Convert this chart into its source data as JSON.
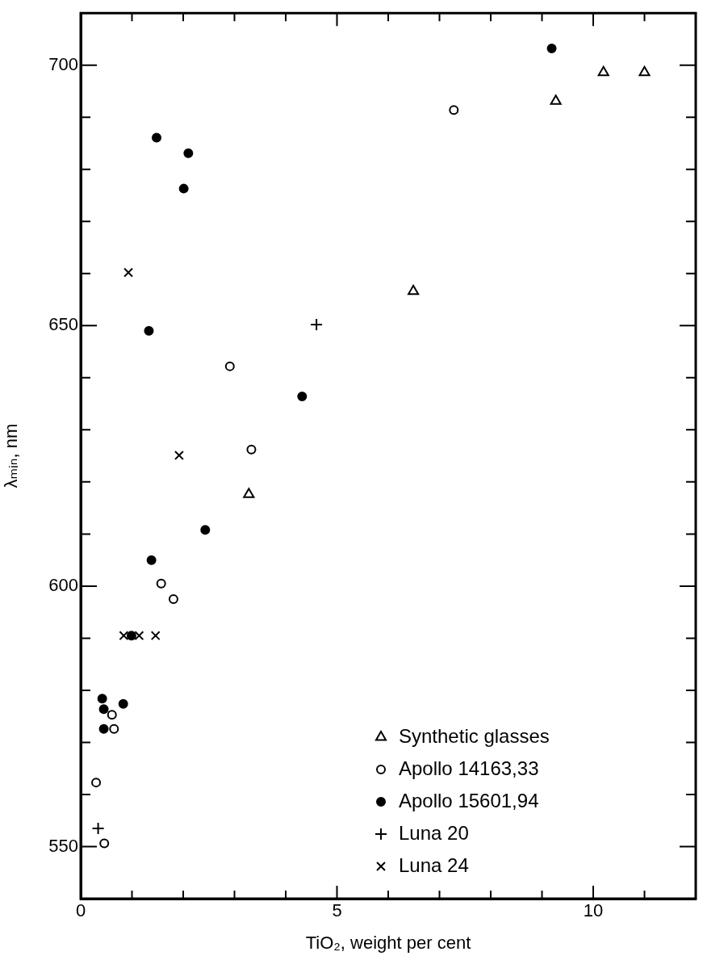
{
  "chart_data": {
    "type": "scatter",
    "xlabel": "TiO₂, weight per cent",
    "ylabel": "λₘᵢₙ, nm",
    "xlim": [
      0,
      12
    ],
    "ylim": [
      540,
      710
    ],
    "xticks": [
      0,
      {
        "value": 1,
        "label": null
      },
      {
        "value": 2,
        "label": null
      },
      {
        "value": 3,
        "label": null
      },
      {
        "value": 4,
        "label": null
      },
      5,
      {
        "value": 6,
        "label": null
      },
      {
        "value": 7,
        "label": null
      },
      {
        "value": 8,
        "label": null
      },
      {
        "value": 9,
        "label": null
      },
      10,
      {
        "value": 11,
        "label": null
      }
    ],
    "yticks": [
      550,
      {
        "value": 560,
        "label": null
      },
      {
        "value": 570,
        "label": null
      },
      {
        "value": 580,
        "label": null
      },
      {
        "value": 590,
        "label": null
      },
      600,
      {
        "value": 610,
        "label": null
      },
      {
        "value": 620,
        "label": null
      },
      {
        "value": 630,
        "label": null
      },
      {
        "value": 640,
        "label": null
      },
      650,
      {
        "value": 660,
        "label": null
      },
      {
        "value": 670,
        "label": null
      },
      {
        "value": 680,
        "label": null
      },
      {
        "value": 690,
        "label": null
      },
      700
    ],
    "grid": false,
    "legend": "bottom right",
    "series": [
      {
        "name": "Synthetic glasses",
        "color": "#000000",
        "marker": "triangle",
        "x": [
          10.2,
          11.0,
          9.27,
          6.49,
          3.28
        ],
        "values": [
          698.6,
          698.6,
          693.1,
          656.6,
          617.6
        ]
      },
      {
        "name": "Apollo 14163,33",
        "color": "#000000",
        "marker": "circle",
        "x": [
          7.28,
          2.91,
          3.33,
          1.57,
          1.81,
          0.61,
          0.65,
          0.3,
          0.46
        ],
        "values": [
          691.4,
          642.2,
          626.2,
          600.5,
          597.5,
          575.3,
          572.6,
          562.3,
          550.6
        ]
      },
      {
        "name": "Apollo 15601,94",
        "color": "#000000",
        "marker": "circle-filled",
        "x": [
          9.19,
          1.48,
          2.1,
          2.01,
          1.33,
          4.32,
          2.43,
          1.38,
          0.99,
          0.42,
          0.45,
          0.83,
          0.45
        ],
        "values": [
          703.2,
          686.1,
          683.1,
          676.3,
          649.0,
          636.4,
          610.8,
          605.0,
          590.5,
          578.4,
          576.4,
          577.4,
          572.6
        ]
      },
      {
        "name": "Luna 20",
        "color": "#000000",
        "marker": "plus",
        "x": [
          4.6,
          0.34
        ],
        "values": [
          650.2,
          553.5
        ]
      },
      {
        "name": "Luna 24",
        "color": "#000000",
        "marker": "cross",
        "x": [
          0.93,
          1.92,
          0.84,
          1.14,
          1.46
        ],
        "values": [
          660.2,
          625.1,
          590.5,
          590.5,
          590.5
        ]
      }
    ]
  }
}
